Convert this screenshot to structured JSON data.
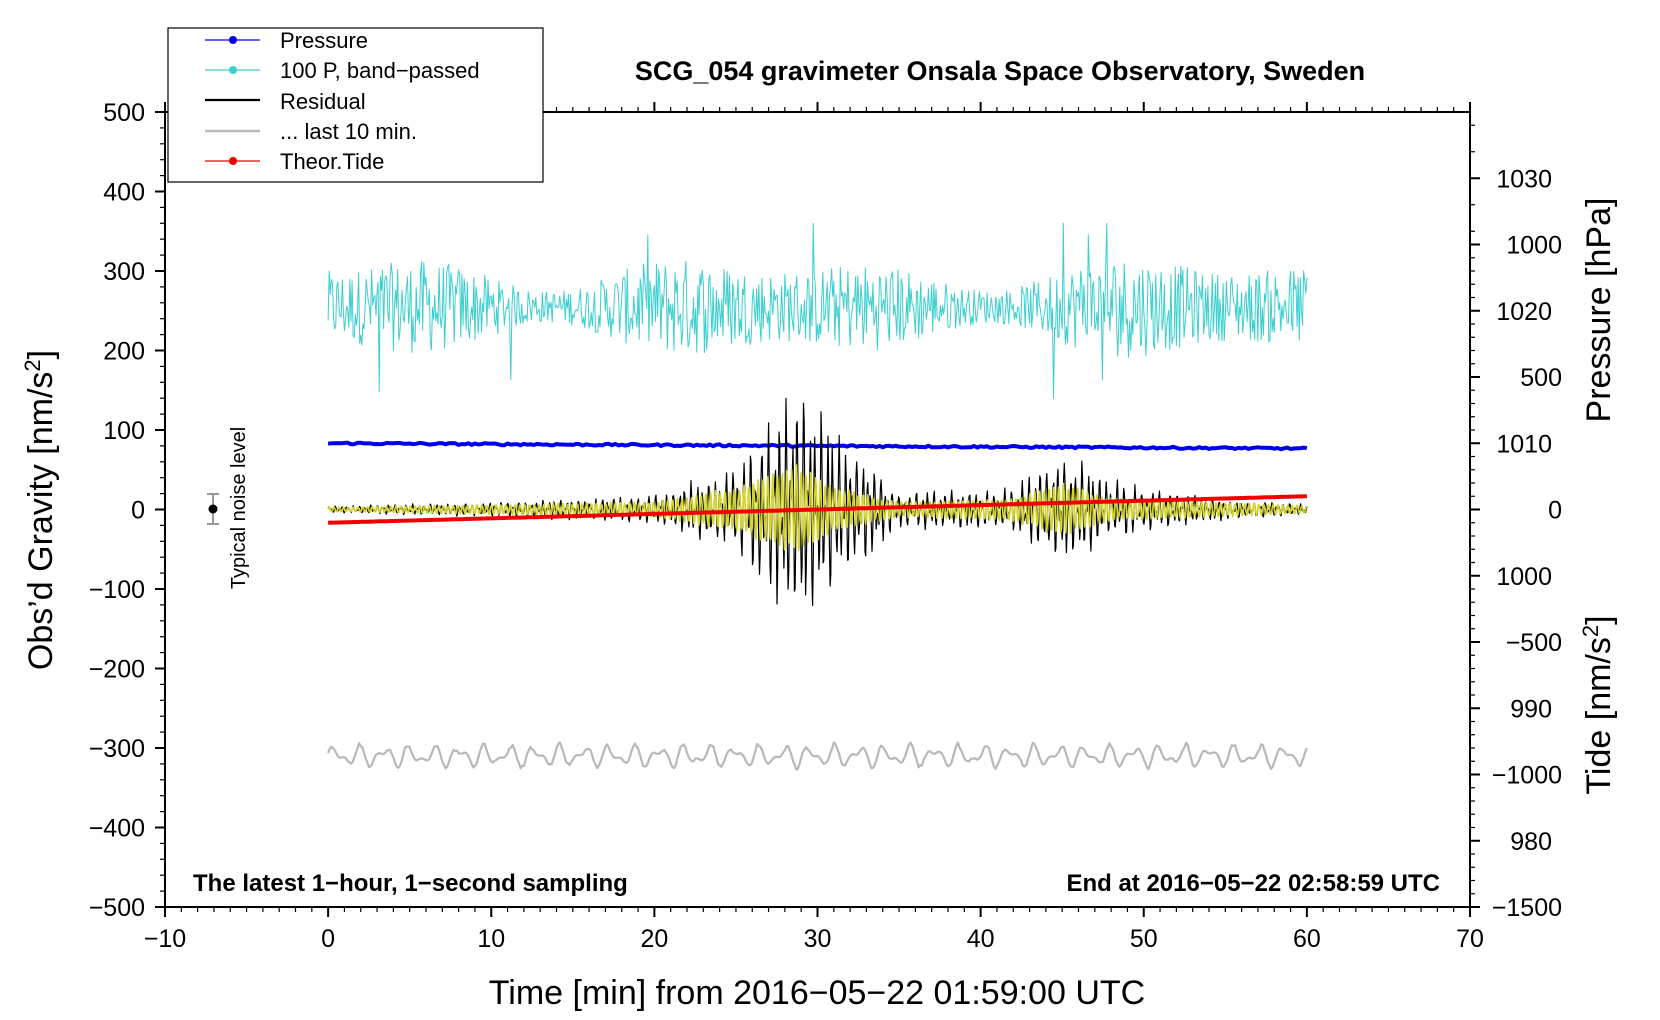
{
  "chart_data": {
    "type": "line",
    "title": "SCG_054 gravimeter Onsala Space Observatory, Sweden",
    "xlabel": "Time [min] from 2016−05−22 01:59:00 UTC",
    "ylabel_prefix": "Obs’d Gravity [nm/s",
    "ylabel_sup": "2",
    "ylabel_suffix": "]",
    "right_label_pressure": "Pressure [hPa]",
    "right_label_tide_prefix": "Tide [nm/s",
    "right_label_tide_sup": "2",
    "right_label_tide_suffix": "]",
    "xlim": [
      -10,
      70
    ],
    "ylim": [
      -500,
      500
    ],
    "pressure_axis_range": [
      975,
      1035
    ],
    "tide_axis_range": [
      -1500,
      1500
    ],
    "x_ticks": [
      "−10",
      "0",
      "10",
      "20",
      "30",
      "40",
      "50",
      "60",
      "70"
    ],
    "y_ticks": [
      "−500",
      "−400",
      "−300",
      "−200",
      "−100",
      "0",
      "100",
      "200",
      "300",
      "400",
      "500"
    ],
    "pressure_ticks": [
      "980",
      "990",
      "1000",
      "1010",
      "1020",
      "1030"
    ],
    "tide_ticks": [
      "−1500",
      "−1000",
      "−500",
      "0",
      "500",
      "1000"
    ],
    "legend": [
      "Pressure",
      "100 P, band−passed",
      "Residual",
      "... last 10 min.",
      "Theor.Tide"
    ],
    "legend_location": "top-left",
    "noise_label": "Typical noise level",
    "noise_level": {
      "x": -7,
      "y": 0,
      "error": 20
    },
    "annotation_left": "The latest 1−hour, 1−second sampling",
    "annotation_right": "End at 2016−05−22 02:58:59 UTC",
    "time_range_min": [
      0,
      60
    ],
    "series": [
      {
        "name": "Pressure",
        "axis": "pressure_hPa",
        "approx_points": [
          [
            0,
            1010.0
          ],
          [
            30,
            1009.8
          ],
          [
            60,
            1009.6
          ]
        ]
      },
      {
        "name": "100 P, band−passed",
        "axis": "gravity",
        "approx_center": 255,
        "approx_range": [
          130,
          360
        ]
      },
      {
        "name": "Residual",
        "axis": "gravity",
        "approx_envelope": [
          [
            0,
            5
          ],
          [
            10,
            10
          ],
          [
            20,
            20
          ],
          [
            25,
            60
          ],
          [
            29,
            180
          ],
          [
            31,
            120
          ],
          [
            35,
            25
          ],
          [
            42,
            30
          ],
          [
            45,
            90
          ],
          [
            48,
            40
          ],
          [
            55,
            15
          ],
          [
            60,
            8
          ]
        ]
      },
      {
        "name": "Residual (band-passed)",
        "axis": "gravity",
        "approx_envelope": [
          [
            0,
            3
          ],
          [
            20,
            10
          ],
          [
            25,
            30
          ],
          [
            29,
            60
          ],
          [
            31,
            30
          ],
          [
            35,
            10
          ],
          [
            42,
            15
          ],
          [
            45,
            35
          ],
          [
            48,
            15
          ],
          [
            60,
            5
          ]
        ]
      },
      {
        "name": "... last 10 min.",
        "axis": "gravity",
        "approx_center": -310,
        "approx_amplitude": 18
      },
      {
        "name": "Theor.Tide",
        "axis": "tide",
        "approx_points": [
          [
            0,
            -50
          ],
          [
            30,
            0
          ],
          [
            60,
            50
          ]
        ]
      }
    ],
    "colors": {
      "pressure": "#0000ee",
      "bandpassed": "#3ccfcf",
      "residual": "#000000",
      "residual_bandpassed": "#d4d42a",
      "last10": "#b8b8b8",
      "tide": "#ee0000"
    }
  }
}
